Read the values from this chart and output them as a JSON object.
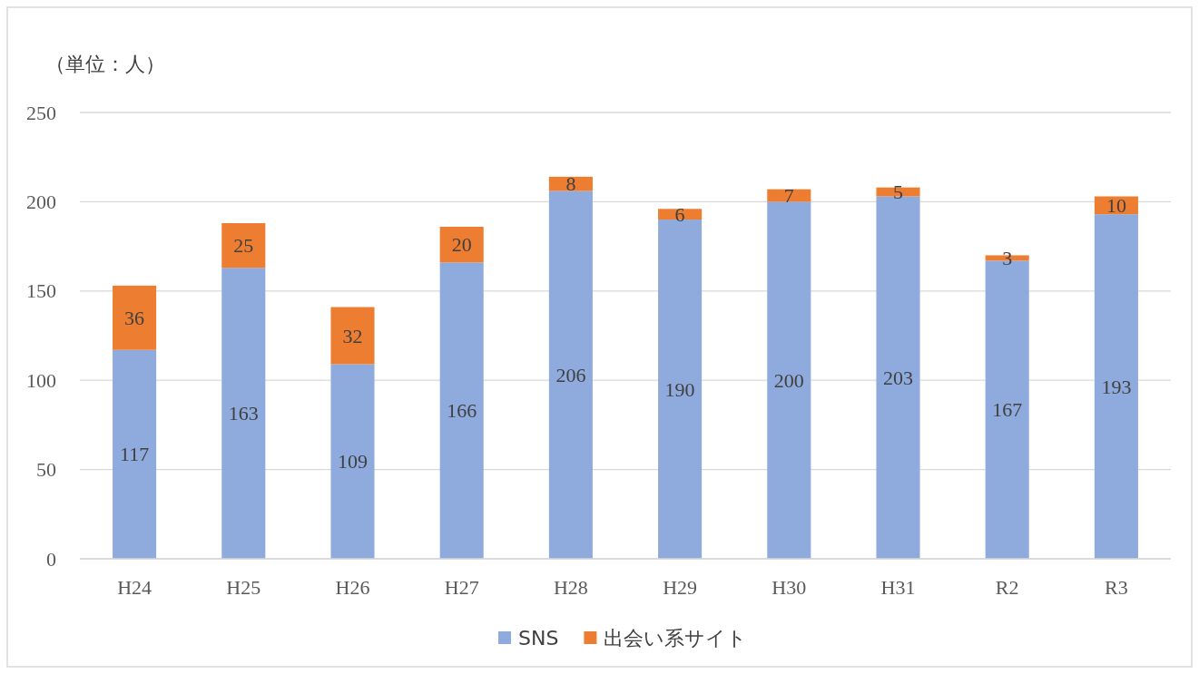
{
  "chart_data": {
    "type": "bar",
    "stacked": true,
    "ylabel": "（単位：人）",
    "categories": [
      "H24",
      "H25",
      "H26",
      "H27",
      "H28",
      "H29",
      "H30",
      "H31",
      "R2",
      "R3"
    ],
    "series": [
      {
        "name": "SNS",
        "color": "#8faadc",
        "values": [
          117,
          163,
          109,
          166,
          206,
          190,
          200,
          203,
          167,
          193
        ]
      },
      {
        "name": "出会い系サイト",
        "color": "#ed7d31",
        "values": [
          36,
          25,
          32,
          20,
          8,
          6,
          7,
          5,
          3,
          10
        ]
      }
    ],
    "ylim": [
      0,
      250
    ],
    "yticks": [
      0,
      50,
      100,
      150,
      200,
      250
    ],
    "grid": "y",
    "legend": "bottom",
    "data_labels": true
  }
}
